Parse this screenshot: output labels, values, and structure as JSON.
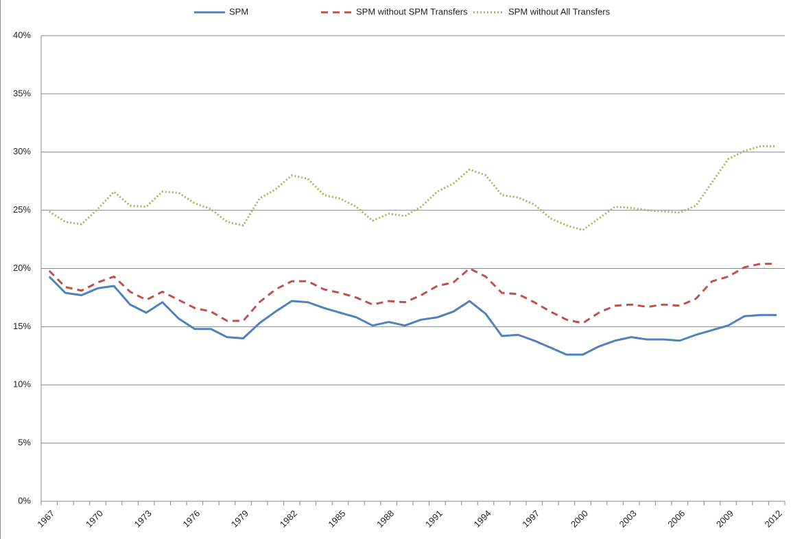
{
  "chart_data": {
    "type": "line",
    "categories": [
      "1967",
      null,
      null,
      "1970",
      null,
      null,
      "1973",
      null,
      null,
      "1976",
      null,
      null,
      "1979",
      null,
      null,
      "1982",
      null,
      null,
      "1985",
      null,
      null,
      "1988",
      null,
      null,
      "1991",
      null,
      null,
      "1994",
      null,
      null,
      "1997",
      null,
      null,
      "2000",
      null,
      null,
      "2003",
      null,
      null,
      "2006",
      null,
      null,
      "2009",
      null,
      null,
      "2012"
    ],
    "series": [
      {
        "name": "SPM",
        "color": "#4f81bd",
        "style": "solid",
        "values": [
          19.3,
          17.9,
          17.7,
          18.3,
          18.5,
          16.9,
          16.2,
          17.1,
          15.7,
          14.8,
          14.8,
          14.1,
          14.0,
          15.3,
          16.3,
          17.2,
          17.1,
          16.6,
          16.2,
          15.8,
          15.1,
          15.4,
          15.1,
          15.6,
          15.8,
          16.3,
          17.2,
          16.1,
          14.2,
          14.3,
          13.8,
          13.2,
          12.6,
          12.6,
          13.3,
          13.8,
          14.1,
          13.9,
          13.9,
          13.8,
          14.3,
          14.7,
          15.1,
          15.9,
          16.0,
          16.0
        ]
      },
      {
        "name": "SPM without SPM Transfers",
        "color": "#c0504d",
        "style": "dashed",
        "values": [
          19.8,
          18.4,
          18.1,
          18.8,
          19.3,
          18.0,
          17.3,
          18.0,
          17.3,
          16.6,
          16.3,
          15.5,
          15.5,
          17.1,
          18.2,
          18.9,
          18.9,
          18.2,
          17.9,
          17.5,
          16.9,
          17.2,
          17.1,
          17.7,
          18.5,
          18.8,
          20.0,
          19.3,
          17.9,
          17.8,
          17.1,
          16.3,
          15.6,
          15.3,
          16.2,
          16.8,
          16.9,
          16.7,
          16.9,
          16.8,
          17.4,
          18.9,
          19.3,
          20.1,
          20.4,
          20.4
        ]
      },
      {
        "name": "SPM without All Transfers",
        "color": "#9bbb59",
        "style": "dotted",
        "values": [
          24.9,
          24.0,
          23.8,
          25.1,
          26.6,
          25.4,
          25.3,
          26.6,
          26.5,
          25.6,
          25.1,
          24.0,
          23.7,
          26.0,
          26.8,
          28.0,
          27.7,
          26.3,
          26.0,
          25.3,
          24.1,
          24.7,
          24.5,
          25.3,
          26.6,
          27.3,
          28.5,
          28.0,
          26.3,
          26.1,
          25.5,
          24.3,
          23.7,
          23.3,
          24.3,
          25.3,
          25.2,
          25.0,
          24.9,
          24.8,
          25.4,
          27.4,
          29.4,
          30.1,
          30.5,
          30.5
        ]
      }
    ],
    "ylim": [
      0,
      40
    ],
    "yticks": [
      {
        "value": 0,
        "label": "0%"
      },
      {
        "value": 5,
        "label": "5%"
      },
      {
        "value": 10,
        "label": "10%"
      },
      {
        "value": 15,
        "label": "15%"
      },
      {
        "value": 20,
        "label": "20%"
      },
      {
        "value": 25,
        "label": "25%"
      },
      {
        "value": 30,
        "label": "30%"
      },
      {
        "value": 35,
        "label": "35%"
      },
      {
        "value": 40,
        "label": "40%"
      }
    ],
    "grid": true,
    "legend": "top"
  }
}
